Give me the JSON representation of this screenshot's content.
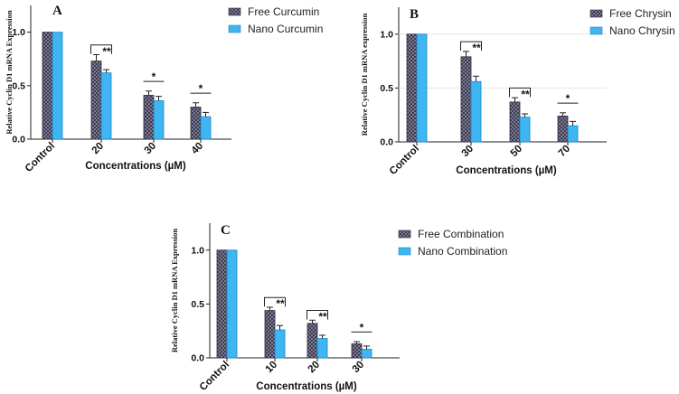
{
  "chart_data": [
    {
      "type": "bar",
      "panel_label": "A",
      "ylabel": "Relative Cyclin D1 mRNA Expression",
      "xlabel": "Concentrations (µM)",
      "categories": [
        "Control",
        "20",
        "30",
        "40"
      ],
      "ylim": [
        0,
        1.25
      ],
      "yticks": [
        "0.0",
        "0.5",
        "1.0"
      ],
      "ytick_values": [
        0,
        0.5,
        1.0
      ],
      "grid": false,
      "legend_position": "top-right",
      "series": [
        {
          "name": "Free Curcumin",
          "values": [
            1.0,
            0.73,
            0.41,
            0.3
          ],
          "errors": [
            0,
            0.06,
            0.04,
            0.04
          ],
          "color": "#5b5870",
          "pattern": "checker"
        },
        {
          "name": "Nano Curcumin",
          "values": [
            1.0,
            0.62,
            0.36,
            0.21
          ],
          "errors": [
            0,
            0.03,
            0.04,
            0.04
          ],
          "color": "#3fb6f2",
          "pattern": "solid"
        }
      ],
      "significance": [
        {
          "category": 1,
          "label": "**"
        },
        {
          "category": 2,
          "label": "*"
        },
        {
          "category": 3,
          "label": "*"
        }
      ]
    },
    {
      "type": "bar",
      "panel_label": "B",
      "ylabel": "Relative Cyclin D1 mRNA expression",
      "xlabel": "Concentrations (µM)",
      "categories": [
        "Control",
        "30",
        "50",
        "70"
      ],
      "ylim": [
        0,
        1.25
      ],
      "yticks": [
        "0.0",
        "0.5",
        "1.0"
      ],
      "ytick_values": [
        0,
        0.5,
        1.0
      ],
      "grid": true,
      "legend_position": "top-right",
      "series": [
        {
          "name": "Free Chrysin",
          "values": [
            1.0,
            0.79,
            0.37,
            0.24
          ],
          "errors": [
            0,
            0.05,
            0.04,
            0.03
          ],
          "color": "#5b5870",
          "pattern": "checker"
        },
        {
          "name": "Nano Chrysin",
          "values": [
            1.0,
            0.56,
            0.23,
            0.15
          ],
          "errors": [
            0,
            0.05,
            0.03,
            0.04
          ],
          "color": "#3fb6f2",
          "pattern": "solid"
        }
      ],
      "significance": [
        {
          "category": 1,
          "label": "**"
        },
        {
          "category": 2,
          "label": "**"
        },
        {
          "category": 3,
          "label": "*"
        }
      ]
    },
    {
      "type": "bar",
      "panel_label": "C",
      "ylabel": "Relative Cyclin D1 mRNA Expression",
      "xlabel": "Concentrations (µM)",
      "categories": [
        "Control",
        "10",
        "20",
        "30"
      ],
      "ylim": [
        0,
        1.25
      ],
      "yticks": [
        "0.0",
        "0.5",
        "1.0"
      ],
      "ytick_values": [
        0,
        0.5,
        1.0
      ],
      "grid": false,
      "legend_position": "top-right",
      "series": [
        {
          "name": "Free Combination",
          "values": [
            1.0,
            0.44,
            0.32,
            0.13
          ],
          "errors": [
            0,
            0.03,
            0.03,
            0.02
          ],
          "color": "#5b5870",
          "pattern": "checker"
        },
        {
          "name": "Nano Combination",
          "values": [
            1.0,
            0.26,
            0.18,
            0.08
          ],
          "errors": [
            0,
            0.04,
            0.03,
            0.03
          ],
          "color": "#3fb6f2",
          "pattern": "solid"
        }
      ],
      "significance": [
        {
          "category": 1,
          "label": "**"
        },
        {
          "category": 2,
          "label": "**"
        },
        {
          "category": 3,
          "label": "*"
        }
      ]
    }
  ]
}
